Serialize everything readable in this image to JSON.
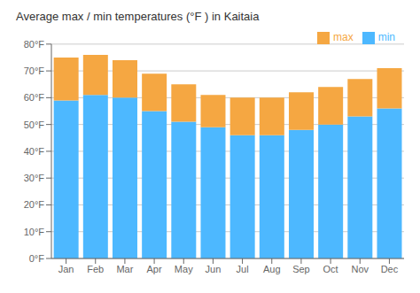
{
  "chart_data": {
    "type": "bar",
    "title": "Average max / min temperatures (°F ) in Kaitaia",
    "stacked": true,
    "categories": [
      "Jan",
      "Feb",
      "Mar",
      "Apr",
      "May",
      "Jun",
      "Jul",
      "Aug",
      "Sep",
      "Oct",
      "Nov",
      "Dec"
    ],
    "series": [
      {
        "name": "min",
        "color": "#4DB8FF",
        "values": [
          59,
          61,
          60,
          55,
          51,
          49,
          46,
          46,
          48,
          50,
          53,
          56
        ]
      },
      {
        "name": "max",
        "color": "#F5A742",
        "values": [
          16,
          15,
          14,
          14,
          14,
          12,
          14,
          14,
          14,
          14,
          14,
          15
        ]
      }
    ],
    "ylim": [
      0,
      80
    ],
    "yticks": [
      {
        "value": 0,
        "label": "0°F"
      },
      {
        "value": 10,
        "label": "10°F"
      },
      {
        "value": 20,
        "label": "20°F"
      },
      {
        "value": 30,
        "label": "30°F"
      },
      {
        "value": 40,
        "label": "40°F"
      },
      {
        "value": 50,
        "label": "50°F"
      },
      {
        "value": 60,
        "label": "60°F"
      },
      {
        "value": 70,
        "label": "70°F"
      },
      {
        "value": 80,
        "label": "80°F"
      }
    ],
    "grid": true,
    "legend": "upper right"
  }
}
